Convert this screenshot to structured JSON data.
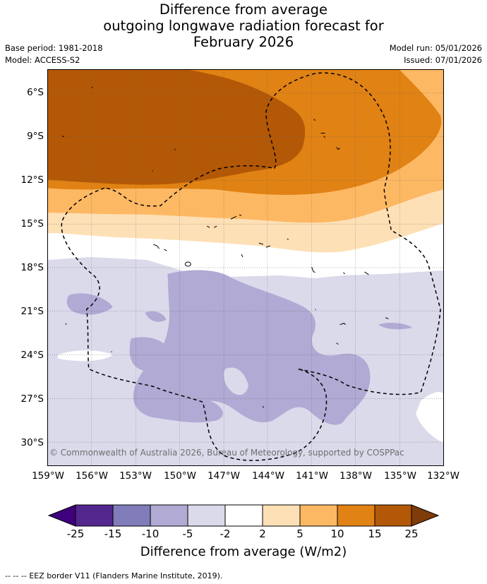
{
  "title": {
    "line1": "Difference from average",
    "line2": "outgoing longwave radiation forecast for",
    "line3": "February 2026"
  },
  "meta": {
    "base_period": "Base period: 1981-2018",
    "model": "Model: ACCESS-S2",
    "model_run": "Model run: 05/01/2026",
    "issued": "Issued: 07/01/2026"
  },
  "map": {
    "copyright": "© Commonwealth of Australia 2026, Bureau of Meteorology, supported by COSPPac",
    "lat_labels": [
      "6°S",
      "9°S",
      "12°S",
      "15°S",
      "18°S",
      "21°S",
      "24°S",
      "27°S",
      "30°S"
    ],
    "lon_labels": [
      "159°W",
      "156°W",
      "153°W",
      "150°W",
      "147°W",
      "144°W",
      "141°W",
      "138°W",
      "135°W",
      "132°W"
    ],
    "colors": {
      "neg25": "#3f007d",
      "neg15": "#54278f",
      "neg10": "#807dba",
      "neg5": "#b0aad4",
      "neg2": "#dadaeb",
      "zero": "#ffffff",
      "pos2": "#fee0b6",
      "pos5": "#fdb863",
      "pos10": "#e08214",
      "pos15": "#b35806",
      "pos25": "#7f3b08"
    }
  },
  "colorbar": {
    "tick_labels": [
      "-25",
      "-15",
      "-10",
      "-5",
      "-2",
      "2",
      "5",
      "10",
      "15",
      "25"
    ],
    "label": "Difference from average (W/m2)"
  },
  "footer": {
    "legend_symbol": "--  --  --",
    "legend_text": "EEZ border V11 (Flanders Marine Institute, 2019)."
  }
}
